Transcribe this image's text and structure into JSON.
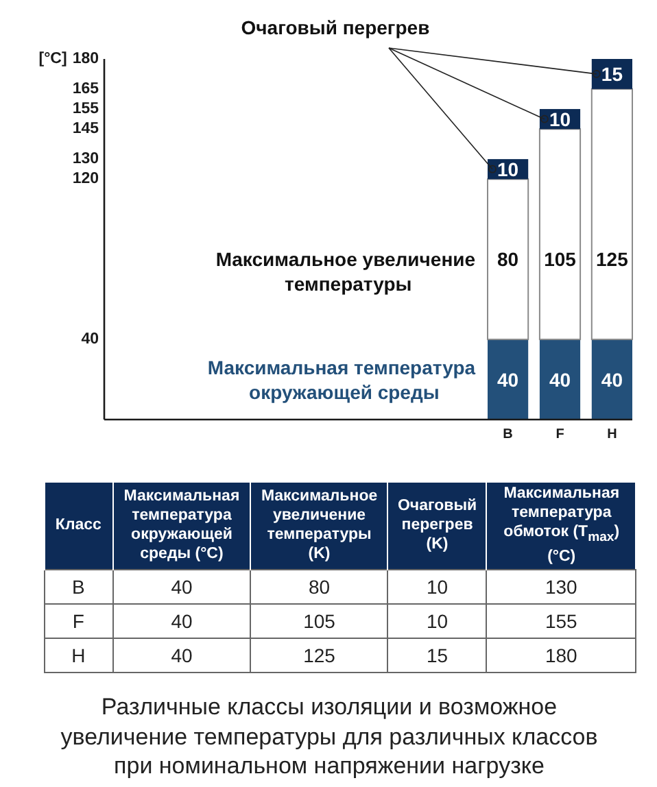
{
  "chart_data": [
    {
      "type": "bar",
      "stacked": true,
      "ylabel": "[°C]",
      "categories": [
        "B",
        "F",
        "H"
      ],
      "series": [
        {
          "name": "Максимальная температура окружающей среды",
          "color": "#23507a",
          "values": [
            40,
            40,
            40
          ]
        },
        {
          "name": "Максимальное увеличение температуры",
          "color": "#ffffff",
          "values": [
            80,
            105,
            125
          ]
        },
        {
          "name": "Очаговый перегрев",
          "color": "#0c2b55",
          "values": [
            10,
            10,
            15
          ]
        }
      ],
      "data_labels": true,
      "annotations": [
        "180",
        "165",
        "155",
        "145",
        "130",
        "120",
        "40"
      ]
    },
    {
      "type": "other",
      "xlabel": "Класс",
      "categories": [
        "B",
        "F",
        "H"
      ],
      "series": [
        {
          "name": "Максимальная температура окружающей среды (°C)",
          "values": [
            40,
            40,
            40
          ]
        },
        {
          "name": "Максимальное увеличение температуры (K)",
          "values": [
            80,
            105,
            125
          ]
        },
        {
          "name": "Очаговый перегрев (K)",
          "values": [
            10,
            10,
            15
          ]
        },
        {
          "name": "Максимальная температура обмоток (T$_{max}$) (°C)",
          "values": [
            130,
            155,
            180
          ]
        }
      ],
      "data_labels": true,
      "annotations": [
        "Различные классы изоляции и возможное увеличение температуры для различных классов при номинальном напряжении нагрузке"
      ]
    }
  ]
}
